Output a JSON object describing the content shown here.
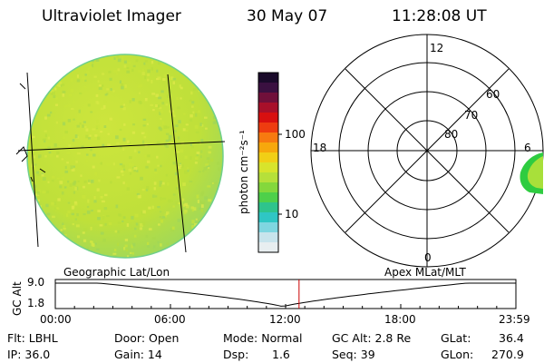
{
  "header": {
    "instrument": "Ultraviolet Imager",
    "date": "30 May 07",
    "time": "11:28:08 UT"
  },
  "colorbar": {
    "unit_label": "photon cm⁻²s⁻¹",
    "tick_100": "100",
    "tick_10": "10"
  },
  "polar": {
    "mlt_top": "12",
    "mlt_bottom": "0",
    "mlt_left": "18",
    "mlt_right": "6",
    "lat_60": "60",
    "lat_70": "70",
    "lat_80": "80"
  },
  "timeline": {
    "left_caption": "Geographic Lat/Lon",
    "right_caption": "Apex MLat/MLT",
    "axis_title": "GC Alt",
    "y_top": "9.0",
    "y_bottom": "1.8",
    "x_ticks": [
      "00:00",
      "06:00",
      "12:00",
      "18:00",
      "23:59"
    ],
    "cursor_time_fraction": 0.478
  },
  "status": {
    "flt": "Flt: LBHL",
    "ip": "IP: 36.0",
    "door": "Door: Open",
    "gain": "Gain: 14",
    "mode": "Mode: Normal",
    "dsp": "Dsp:",
    "dsp_value": "1.6",
    "gc_alt": "GC Alt: 2.8 Re",
    "seq": "Seq: 39",
    "glat": "GLat:",
    "glat_value": "36.4",
    "glon": "GLon:",
    "glon_value": "270.9"
  },
  "colors": {
    "disk_fill": "#c4e33a",
    "grid": "#000000",
    "cursor": "#cc0000"
  }
}
